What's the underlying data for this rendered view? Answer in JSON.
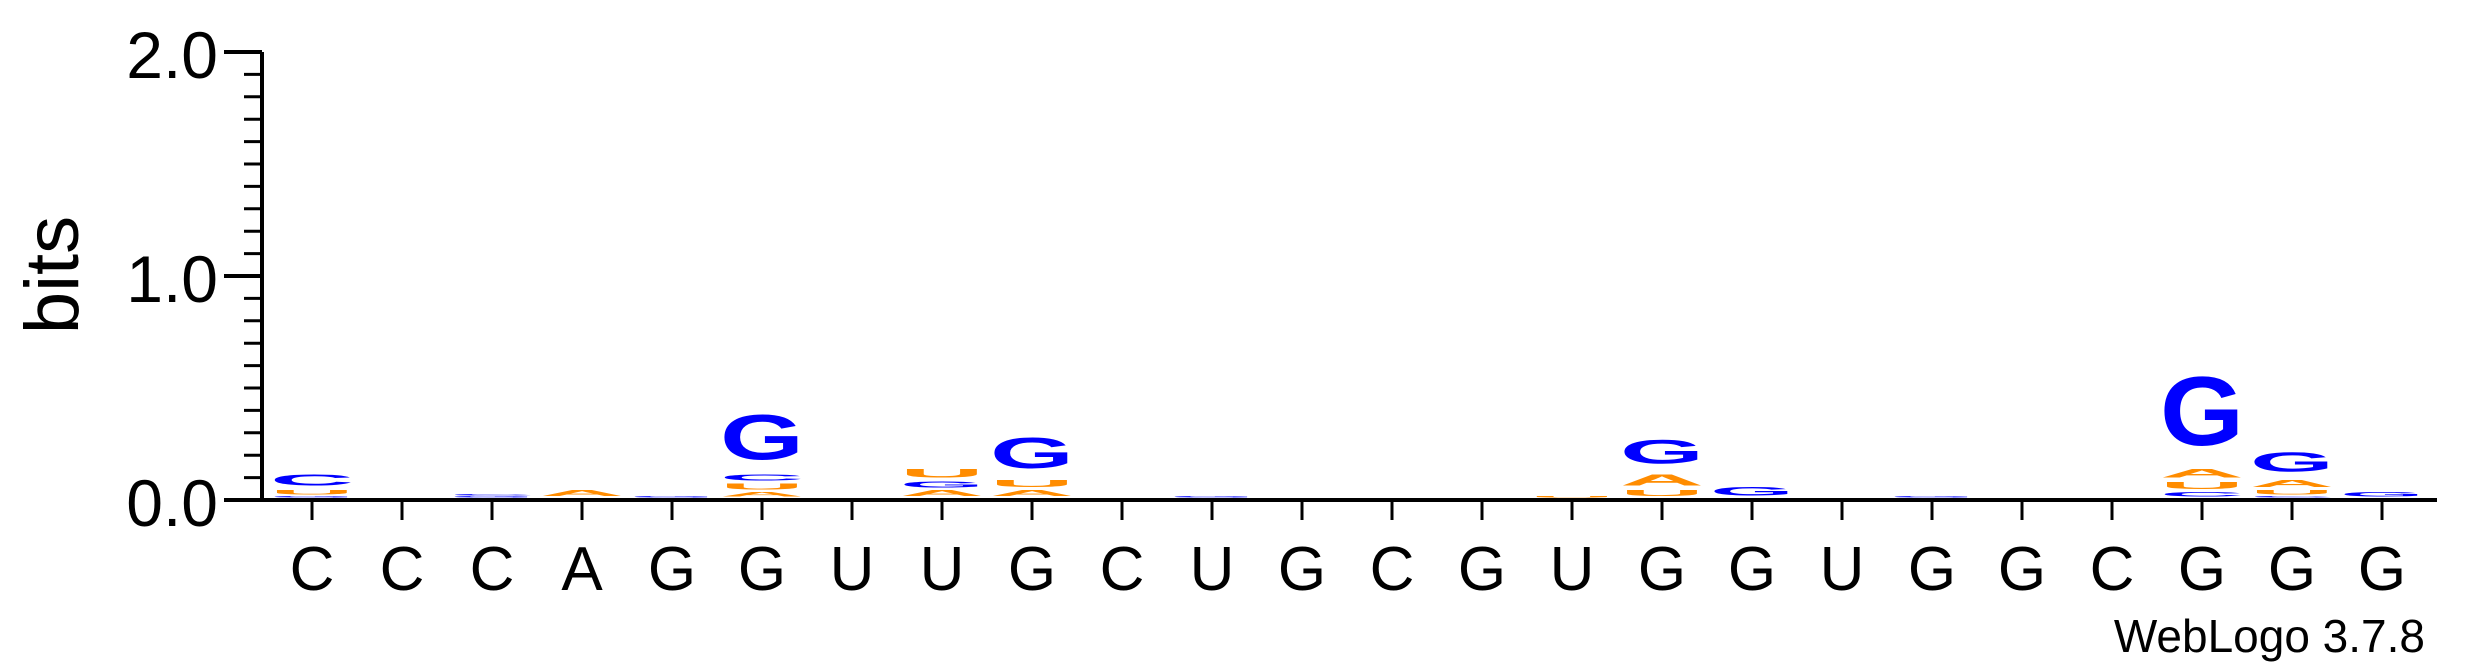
{
  "chart_data": {
    "type": "sequence-logo",
    "ylabel": "bits",
    "ylim": [
      0,
      2.0
    ],
    "yticks": [
      {
        "value": 0.0,
        "label": "0.0"
      },
      {
        "value": 1.0,
        "label": "1.0"
      },
      {
        "value": 2.0,
        "label": "2.0"
      }
    ],
    "y_minor_step": 0.1,
    "colors": {
      "G": "#0000ff",
      "C": "#0000ff",
      "A": "#ff8c00",
      "U": "#ff8c00"
    },
    "positions": [
      {
        "label": "C",
        "stack": [
          {
            "letter": "G",
            "bits": 0.01
          },
          {
            "letter": "U",
            "bits": 0.03
          },
          {
            "letter": "C",
            "bits": 0.08
          }
        ]
      },
      {
        "label": "C",
        "stack": []
      },
      {
        "label": "C",
        "stack": [
          {
            "letter": "G",
            "bits": 0.01
          },
          {
            "letter": "C",
            "bits": 0.01
          }
        ]
      },
      {
        "label": "A",
        "stack": [
          {
            "letter": "A",
            "bits": 0.04
          }
        ]
      },
      {
        "label": "G",
        "stack": [
          {
            "letter": "G",
            "bits": 0.01
          }
        ]
      },
      {
        "label": "G",
        "stack": [
          {
            "letter": "A",
            "bits": 0.03
          },
          {
            "letter": "U",
            "bits": 0.04
          },
          {
            "letter": "C",
            "bits": 0.04
          },
          {
            "letter": "G",
            "bits": 0.32
          }
        ]
      },
      {
        "label": "U",
        "stack": []
      },
      {
        "label": "U",
        "stack": [
          {
            "letter": "A",
            "bits": 0.04
          },
          {
            "letter": "G",
            "bits": 0.04
          },
          {
            "letter": "U",
            "bits": 0.06
          }
        ]
      },
      {
        "label": "G",
        "stack": [
          {
            "letter": "A",
            "bits": 0.04
          },
          {
            "letter": "U",
            "bits": 0.05
          },
          {
            "letter": "G",
            "bits": 0.22
          }
        ]
      },
      {
        "label": "C",
        "stack": []
      },
      {
        "label": "U",
        "stack": [
          {
            "letter": "G",
            "bits": 0.01
          }
        ]
      },
      {
        "label": "G",
        "stack": []
      },
      {
        "label": "C",
        "stack": []
      },
      {
        "label": "G",
        "stack": []
      },
      {
        "label": "U",
        "stack": [
          {
            "letter": "U",
            "bits": 0.01
          }
        ]
      },
      {
        "label": "G",
        "stack": [
          {
            "letter": "U",
            "bits": 0.04
          },
          {
            "letter": "A",
            "bits": 0.08
          },
          {
            "letter": "G",
            "bits": 0.17
          }
        ]
      },
      {
        "label": "G",
        "stack": [
          {
            "letter": "G",
            "bits": 0.06
          }
        ]
      },
      {
        "label": "U",
        "stack": []
      },
      {
        "label": "G",
        "stack": [
          {
            "letter": "G",
            "bits": 0.01
          }
        ]
      },
      {
        "label": "G",
        "stack": []
      },
      {
        "label": "C",
        "stack": []
      },
      {
        "label": "G",
        "stack": [
          {
            "letter": "C",
            "bits": 0.03
          },
          {
            "letter": "U",
            "bits": 0.05
          },
          {
            "letter": "A",
            "bits": 0.06
          },
          {
            "letter": "G",
            "bits": 0.49
          }
        ]
      },
      {
        "label": "G",
        "stack": [
          {
            "letter": "C",
            "bits": 0.01
          },
          {
            "letter": "U",
            "bits": 0.03
          },
          {
            "letter": "A",
            "bits": 0.05
          },
          {
            "letter": "G",
            "bits": 0.14
          }
        ]
      },
      {
        "label": "G",
        "stack": [
          {
            "letter": "G",
            "bits": 0.03
          }
        ]
      }
    ],
    "credit": "WebLogo 3.7.8"
  }
}
